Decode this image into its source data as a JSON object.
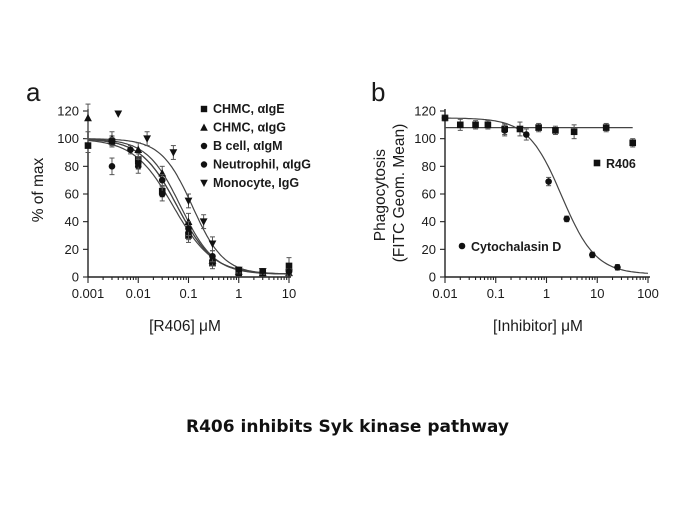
{
  "caption": "R406 inhibits Syk kinase pathway",
  "chart_data": [
    {
      "panel_label": "a",
      "type": "scatter",
      "xlabel": "[R406] μM",
      "ylabel": "% of max",
      "xscale": "log",
      "xlim": [
        0.001,
        10
      ],
      "ylim": [
        0,
        120
      ],
      "xticks": [
        "0.001",
        "0.01",
        "0.1",
        "1",
        "10"
      ],
      "yticks": [
        "0",
        "20",
        "40",
        "60",
        "80",
        "100",
        "120"
      ],
      "legend_position": "top-right",
      "series": [
        {
          "name": "CHMC, αIgE",
          "marker": "square",
          "x": [
            0.001,
            0.003,
            0.01,
            0.03,
            0.1,
            0.3,
            1,
            3,
            10
          ],
          "y": [
            95,
            98,
            85,
            62,
            30,
            10,
            3,
            3,
            8
          ],
          "err": [
            5,
            4,
            4,
            4,
            5,
            4,
            2,
            2,
            6
          ],
          "fit_ic50": 0.06,
          "fit_hill": 1.2
        },
        {
          "name": "CHMC, αIgG",
          "marker": "triangle-up",
          "x": [
            0.001,
            0.003,
            0.01,
            0.03,
            0.1,
            0.3,
            1,
            3,
            10
          ],
          "y": [
            115,
            100,
            92,
            75,
            40,
            12,
            4,
            3,
            3
          ],
          "err": [
            10,
            5,
            5,
            5,
            6,
            4,
            2,
            2,
            2
          ],
          "fit_ic50": 0.07,
          "fit_hill": 1.3
        },
        {
          "name": "B cell, αIgM",
          "marker": "circle",
          "x": [
            0.003,
            0.01,
            0.03,
            0.1,
            0.3,
            1,
            3,
            10
          ],
          "y": [
            80,
            80,
            60,
            32,
            12,
            5,
            4,
            4
          ],
          "err": [
            6,
            5,
            5,
            5,
            4,
            2,
            2,
            2
          ],
          "fit_ic50": 0.05,
          "fit_hill": 1.1
        },
        {
          "name": "Neutrophil, αIgG",
          "marker": "circle",
          "x": [
            0.003,
            0.007,
            0.01,
            0.03,
            0.1,
            0.3,
            1,
            3,
            10
          ],
          "y": [
            98,
            92,
            82,
            70,
            35,
            15,
            5,
            4,
            4
          ],
          "err": [
            3,
            3,
            4,
            4,
            5,
            4,
            2,
            2,
            2
          ],
          "fit_ic50": 0.06,
          "fit_hill": 1.2
        },
        {
          "name": "Monocyte, IgG",
          "marker": "triangle-down",
          "x": [
            0.004,
            0.015,
            0.05,
            0.1,
            0.2,
            0.3,
            1,
            3,
            10
          ],
          "y": [
            118,
            100,
            90,
            55,
            40,
            24,
            5,
            4,
            3
          ],
          "err": [
            0,
            5,
            5,
            5,
            5,
            5,
            2,
            2,
            2
          ],
          "fit_ic50": 0.12,
          "fit_hill": 1.4
        }
      ]
    },
    {
      "panel_label": "b",
      "type": "scatter",
      "xlabel": "[Inhibitor] μM",
      "ylabel": "Phagocytosis\n(FITC Geom. Mean)",
      "xscale": "log",
      "xlim": [
        0.01,
        100
      ],
      "ylim": [
        0,
        120
      ],
      "xticks": [
        "0.01",
        "0.1",
        "1",
        "10",
        "100"
      ],
      "yticks": [
        "0",
        "20",
        "40",
        "60",
        "80",
        "100",
        "120"
      ],
      "series": [
        {
          "name": "R406",
          "marker": "square",
          "x": [
            0.01,
            0.02,
            0.04,
            0.07,
            0.15,
            0.3,
            0.7,
            1.5,
            3.5,
            15,
            50
          ],
          "y": [
            115,
            110,
            110,
            110,
            107,
            107,
            108,
            106,
            105,
            108,
            97
          ],
          "err": [
            2,
            4,
            3,
            3,
            4,
            5,
            3,
            3,
            5,
            3,
            3
          ],
          "fit_flat": 108
        },
        {
          "name": "Cytochalasin D",
          "marker": "circle",
          "x": [
            0.01,
            0.15,
            0.4,
            1.1,
            2.5,
            8,
            25
          ],
          "y": [
            115,
            106,
            103,
            69,
            42,
            16,
            7
          ],
          "err": [
            2,
            4,
            4,
            3,
            2,
            2,
            2
          ],
          "fit_ic50": 2.0,
          "fit_hill": 1.3
        }
      ]
    }
  ]
}
